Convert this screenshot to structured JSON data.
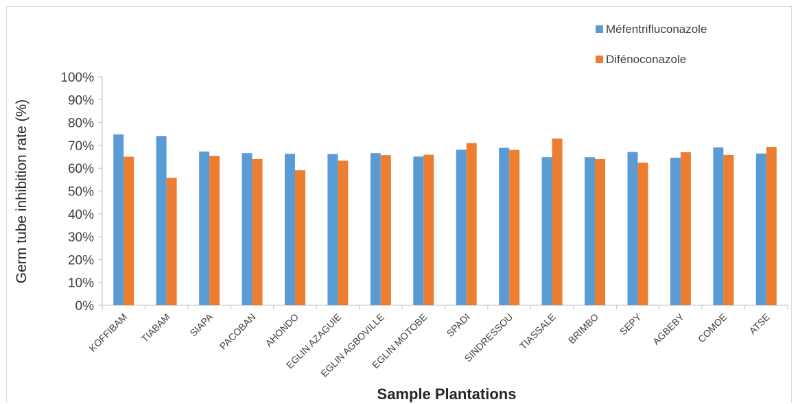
{
  "chart_data": {
    "type": "bar",
    "title": "",
    "xlabel": "Sample Plantations",
    "ylabel": "Germ tube inhibition rate (%)",
    "ylim": [
      0,
      100
    ],
    "yticks": [
      "0%",
      "10%",
      "20%",
      "30%",
      "40%",
      "50%",
      "60%",
      "70%",
      "80%",
      "90%",
      "100%"
    ],
    "grid": false,
    "legend_position": "top-right",
    "categories": [
      "KOFFIBAM",
      "TIABAM",
      "SIAPA",
      "PACOBAN",
      "AHONDO",
      "EGLIN AZAGUIE",
      "EGLIN AGBOVILLE",
      "EGLIN MOTOBE",
      "SPADI",
      "SINDRESSOU",
      "TIASSALE",
      "BRIMBO",
      "SEPY",
      "AGBEBY",
      "COMOE",
      "ATSE"
    ],
    "series": [
      {
        "name": "Méfentrifluconazole",
        "color": "#5B9BD5",
        "values": [
          74.8,
          74.1,
          67.3,
          66.6,
          66.3,
          66.2,
          66.6,
          65.1,
          68.1,
          68.9,
          64.8,
          64.8,
          67.1,
          64.6,
          69.1,
          66.4
        ]
      },
      {
        "name": "Difénoconazole",
        "color": "#ED7D31",
        "values": [
          65.0,
          55.8,
          65.4,
          64.0,
          59.1,
          63.3,
          65.7,
          65.9,
          71.0,
          68.0,
          73.0,
          64.0,
          62.4,
          67.0,
          65.8,
          69.3
        ]
      }
    ]
  }
}
